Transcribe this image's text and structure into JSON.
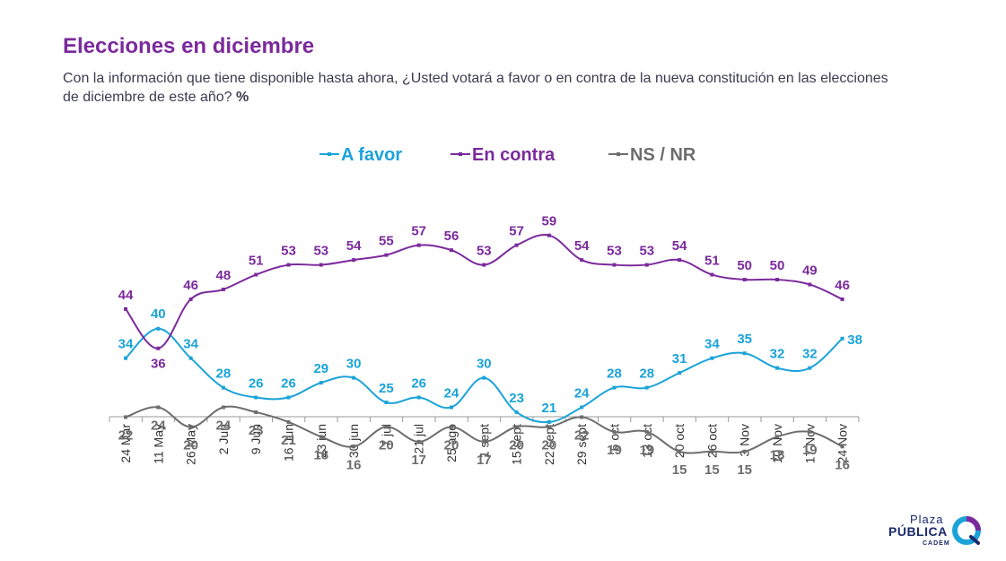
{
  "header": {
    "title": "Elecciones en diciembre",
    "subtitle": "Con la información que tiene disponible hasta ahora, ¿Usted votará a favor o en contra de la nueva constitución en las elecciones de diciembre de este año?",
    "subtitle_unit": "%"
  },
  "chart_data": {
    "type": "line",
    "categories": [
      "24 Mar",
      "11 May",
      "26 May",
      "2 Jun",
      "9 Jun",
      "16 Jun",
      "23 jun",
      "30 jun",
      "7 jul",
      "21 jul",
      "25 ago",
      "1 sept",
      "15 sept",
      "22 sept",
      "29 sept",
      "6 oct",
      "13 oct",
      "20 oct",
      "26 oct",
      "3 Nov",
      "10 Nov",
      "17 Nov",
      "24 Nov"
    ],
    "series": [
      {
        "name": "A favor",
        "color": "#1aa3d9",
        "values": [
          34,
          40,
          34,
          28,
          26,
          26,
          29,
          30,
          25,
          26,
          24,
          30,
          23,
          21,
          24,
          28,
          28,
          31,
          34,
          35,
          32,
          32,
          38
        ]
      },
      {
        "name": "En contra",
        "color": "#7b2a9c",
        "values": [
          44,
          36,
          46,
          48,
          51,
          53,
          53,
          54,
          55,
          57,
          56,
          53,
          57,
          59,
          54,
          53,
          53,
          54,
          51,
          50,
          50,
          49,
          46
        ]
      },
      {
        "name": "NS / NR",
        "color": "#6d6d6d",
        "values": [
          22,
          24,
          20,
          24,
          23,
          21,
          18,
          16,
          20,
          17,
          20,
          17,
          20,
          20,
          22,
          19,
          19,
          15,
          15,
          15,
          18,
          19,
          16
        ]
      }
    ],
    "legend_position": "top-center",
    "data_labels": true,
    "ylim": [
      0,
      100
    ]
  },
  "logo": {
    "line1": "Plaza",
    "line2": "PÚBLICA",
    "line3": "CADEM"
  }
}
